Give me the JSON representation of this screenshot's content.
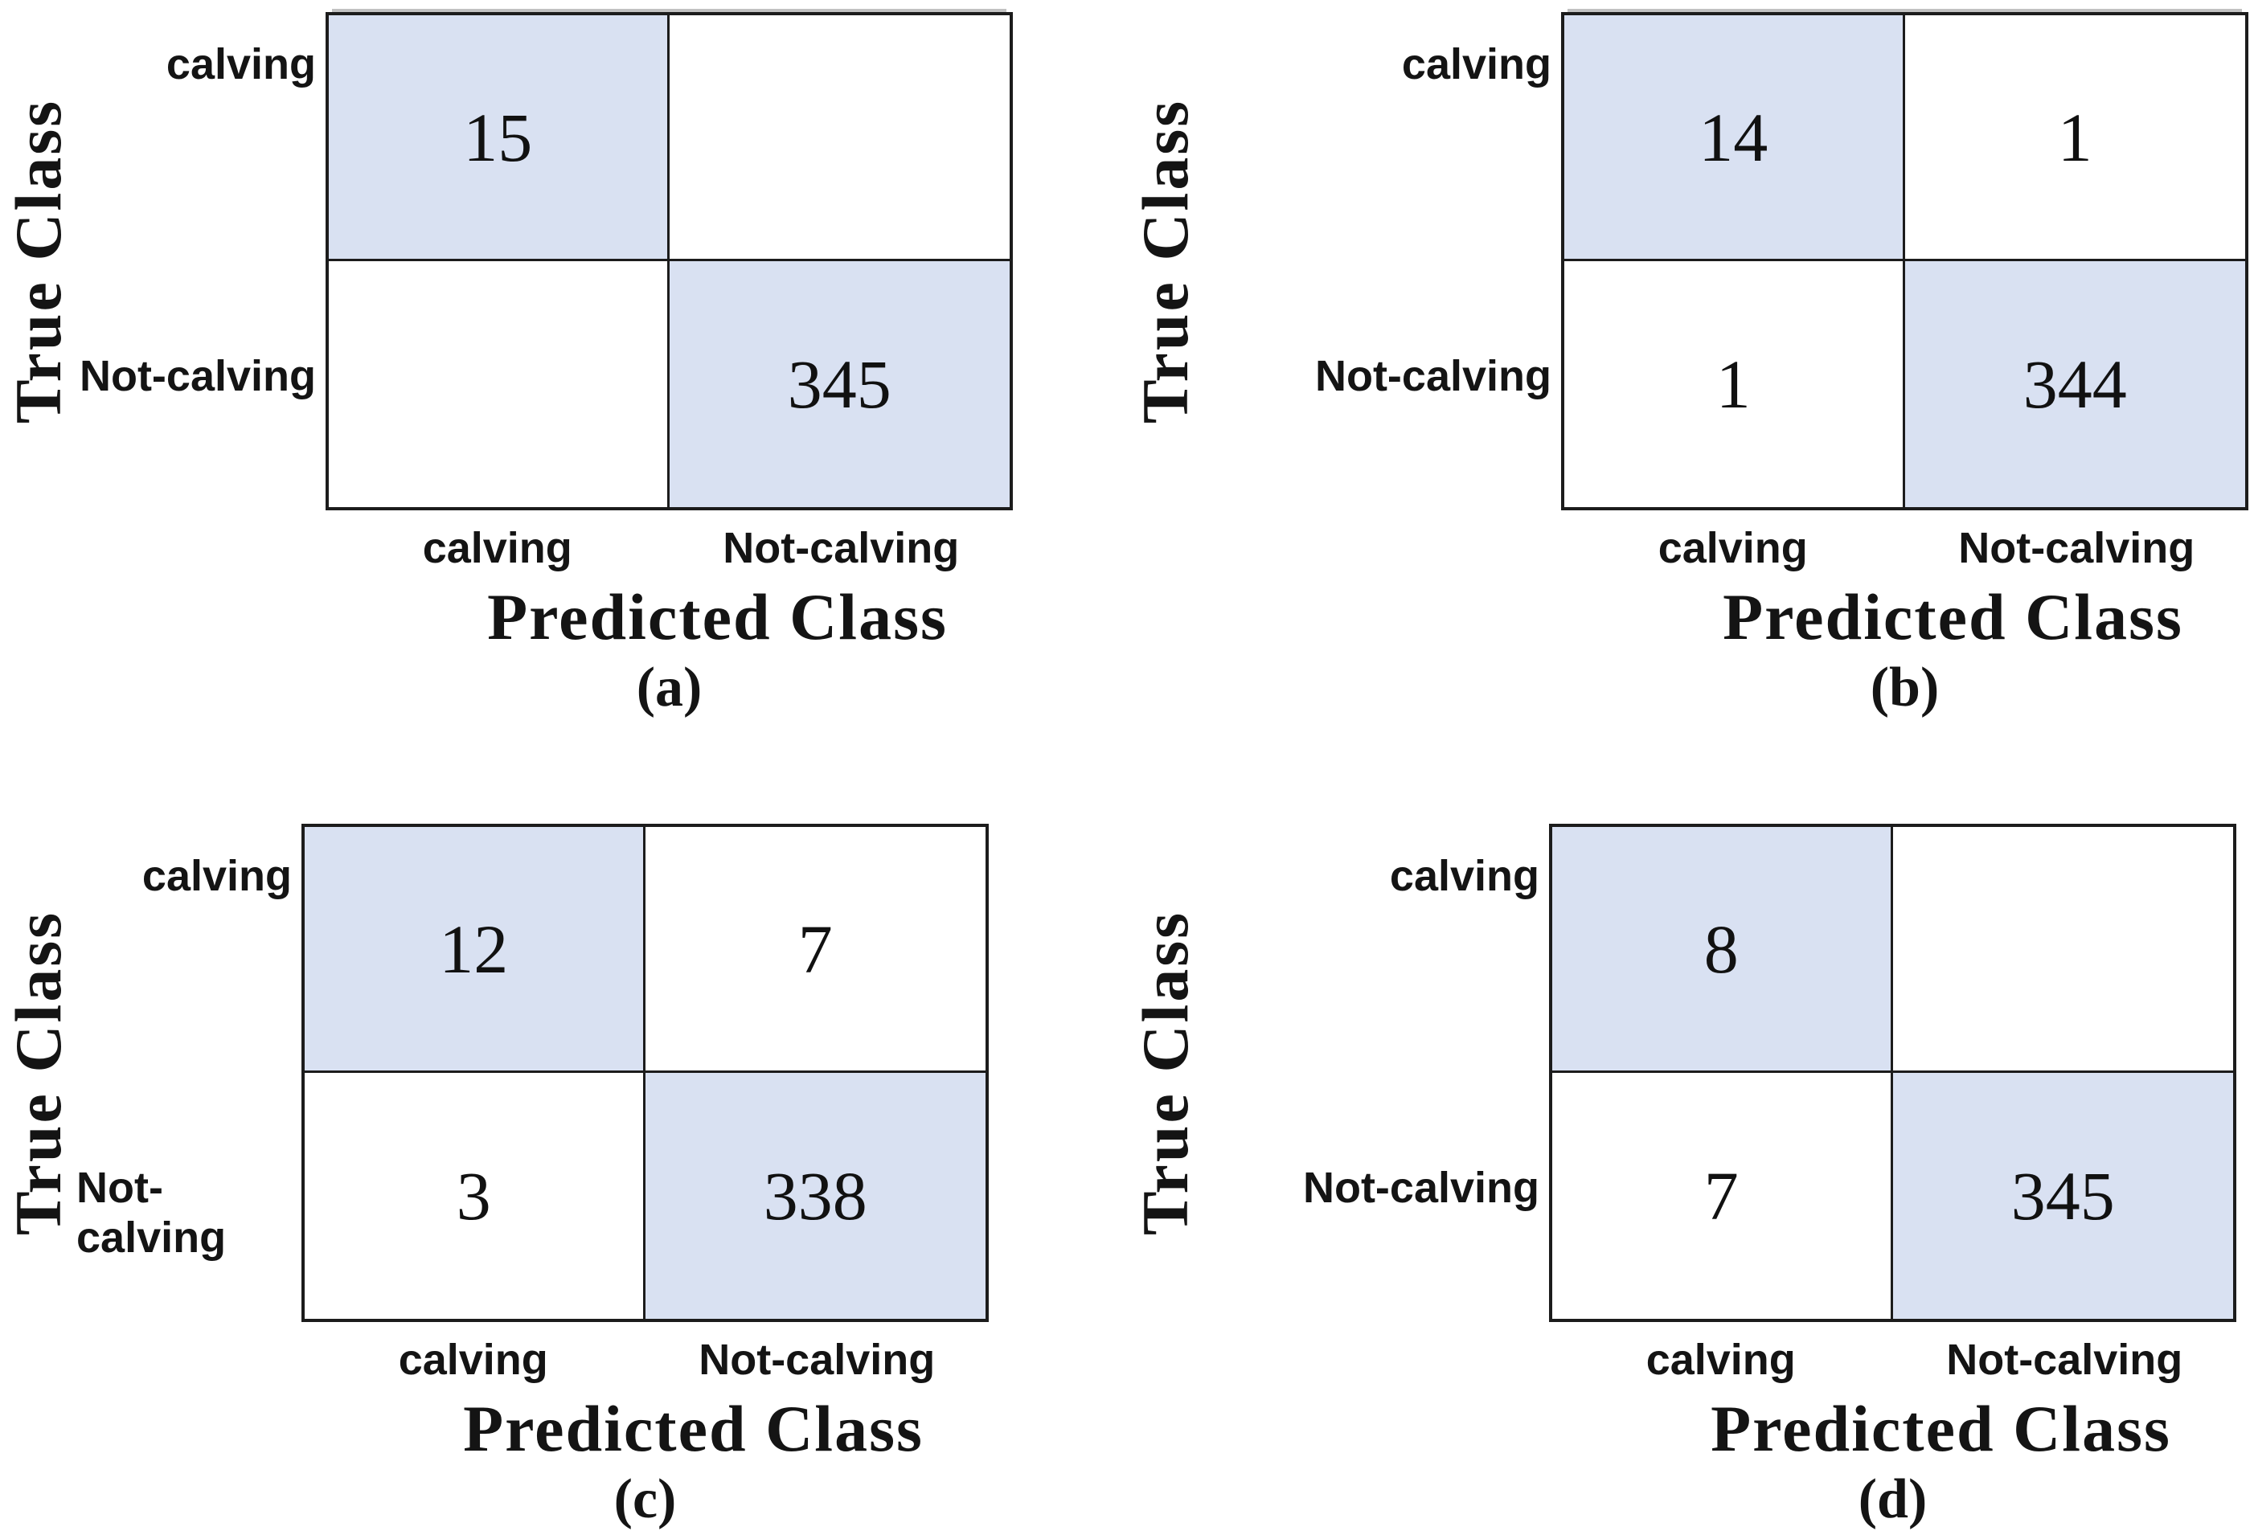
{
  "figure": {
    "y_axis_label": "True Class",
    "x_axis_label": "Predicted Class",
    "row_labels": [
      "calving",
      "Not-calving"
    ],
    "col_labels": [
      "calving",
      "Not-calving"
    ],
    "colors": {
      "diagonal_fill": "#d9e1f2",
      "off_diagonal_fill": "#ffffff",
      "grid_border": "#1c1c1c"
    }
  },
  "panels": [
    {
      "letter": "(a)",
      "cells": [
        [
          "15",
          ""
        ],
        [
          "",
          "345"
        ]
      ]
    },
    {
      "letter": "(b)",
      "cells": [
        [
          "14",
          "1"
        ],
        [
          "1",
          "344"
        ]
      ]
    },
    {
      "letter": "(c)",
      "cells": [
        [
          "12",
          "7"
        ],
        [
          "3",
          "338"
        ]
      ]
    },
    {
      "letter": "(d)",
      "cells": [
        [
          "8",
          ""
        ],
        [
          "7",
          "345"
        ]
      ]
    }
  ],
  "chart_data": [
    {
      "type": "heatmap",
      "title": "(a)",
      "xlabel": "Predicted Class",
      "ylabel": "True Class",
      "x": [
        "calving",
        "Not-calving"
      ],
      "y": [
        "calving",
        "Not-calving"
      ],
      "values": [
        [
          15,
          null
        ],
        [
          null,
          345
        ]
      ],
      "highlight": "diagonal cells shaded #d9e1f2, empty cells blank"
    },
    {
      "type": "heatmap",
      "title": "(b)",
      "xlabel": "Predicted Class",
      "ylabel": "True Class",
      "x": [
        "calving",
        "Not-calving"
      ],
      "y": [
        "calving",
        "Not-calving"
      ],
      "values": [
        [
          14,
          1
        ],
        [
          1,
          344
        ]
      ],
      "highlight": "diagonal cells shaded #d9e1f2"
    },
    {
      "type": "heatmap",
      "title": "(c)",
      "xlabel": "Predicted Class",
      "ylabel": "True Class",
      "x": [
        "calving",
        "Not-calving"
      ],
      "y": [
        "calving",
        "Not-calving"
      ],
      "values": [
        [
          12,
          7
        ],
        [
          3,
          338
        ]
      ],
      "highlight": "diagonal cells shaded #d9e1f2"
    },
    {
      "type": "heatmap",
      "title": "(d)",
      "xlabel": "Predicted Class",
      "ylabel": "True Class",
      "x": [
        "calving",
        "Not-calving"
      ],
      "y": [
        "calving",
        "Not-calving"
      ],
      "values": [
        [
          8,
          null
        ],
        [
          7,
          345
        ]
      ],
      "highlight": "diagonal cells shaded #d9e1f2, empty cells blank"
    }
  ]
}
